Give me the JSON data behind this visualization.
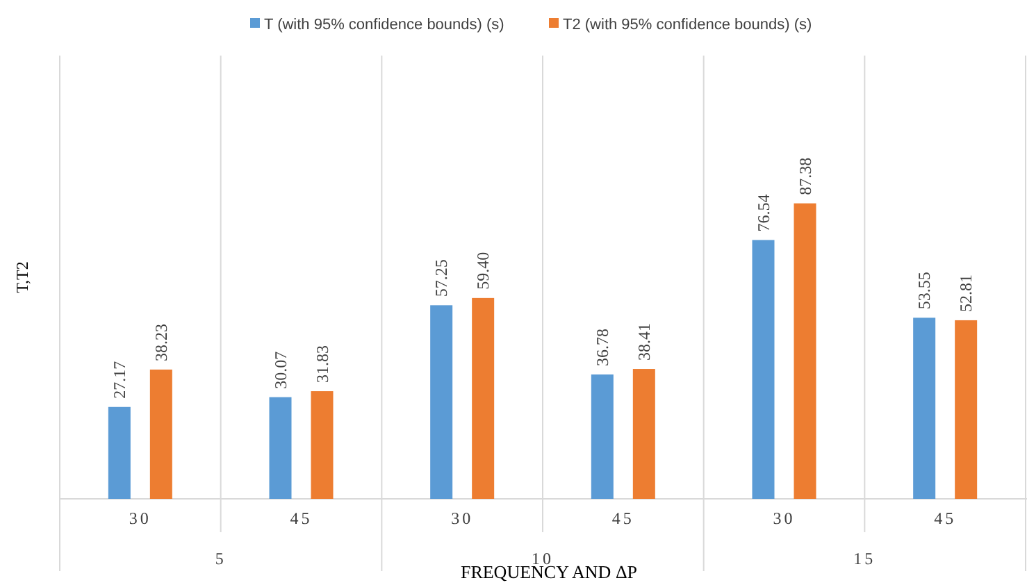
{
  "chart_data": {
    "type": "bar",
    "ylabel": "T,T2",
    "xlabel": "FREQUENCY AND ΔP",
    "categories": [
      "30",
      "45",
      "30",
      "45",
      "30",
      "45"
    ],
    "annotations": [
      "5",
      "10",
      "15"
    ],
    "series": [
      {
        "name": "T (with 95% confidence bounds) (s)",
        "color": "#5b9bd5",
        "values": [
          27.17,
          30.07,
          57.25,
          36.78,
          76.54,
          53.55
        ],
        "value_labels": [
          "27.17",
          "30.07",
          "57.25",
          "36.78",
          "76.54",
          "53.55"
        ]
      },
      {
        "name": "T2 (with 95% confidence bounds) (s)",
        "color": "#ed7d31",
        "values": [
          38.23,
          31.83,
          59.4,
          38.41,
          87.38,
          52.81
        ],
        "value_labels": [
          "38.23",
          "31.83",
          "59.40",
          "38.41",
          "87.38",
          "52.81"
        ]
      }
    ],
    "tick_labels": "x",
    "legend": "top"
  }
}
